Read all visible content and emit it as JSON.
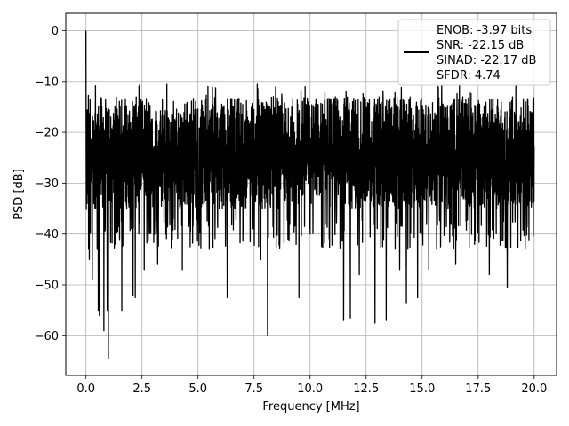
{
  "chart_data": {
    "type": "line",
    "xlabel": "Frequency [MHz]",
    "ylabel": "PSD [dB]",
    "xlim": [
      -0.9,
      21.0
    ],
    "ylim": [
      -67.8,
      3.4
    ],
    "xticks": [
      0.0,
      2.5,
      5.0,
      7.5,
      10.0,
      12.5,
      15.0,
      17.5,
      20.0
    ],
    "xtick_labels": [
      "0.0",
      "2.5",
      "5.0",
      "7.5",
      "10.0",
      "12.5",
      "15.0",
      "17.5",
      "20.0"
    ],
    "yticks": [
      0,
      -10,
      -20,
      -30,
      -40,
      -50,
      -60
    ],
    "ytick_labels": [
      "0",
      "−10",
      "−20",
      "−30",
      "−40",
      "−50",
      "−60"
    ],
    "grid": true,
    "legend_position": "top-right",
    "series": [
      {
        "name": "ENOB: -3.97 bits\nSNR: -22.15 dB\nSINAD: -22.17 dB\nSFDR: 4.74",
        "color": "#000000",
        "x_range": [
          0.0,
          20.0
        ],
        "typical_range": [
          -35,
          -13
        ],
        "peak": {
          "x": 0.0,
          "y": 0.0
        },
        "dips": [
          {
            "x": 0.05,
            "y": -34
          },
          {
            "x": 0.12,
            "y": -43
          },
          {
            "x": 0.15,
            "y": -45
          },
          {
            "x": 0.28,
            "y": -49
          },
          {
            "x": 0.5,
            "y": -43
          },
          {
            "x": 0.55,
            "y": -55
          },
          {
            "x": 0.6,
            "y": -56
          },
          {
            "x": 0.8,
            "y": -59
          },
          {
            "x": 0.95,
            "y": -55
          },
          {
            "x": 1.0,
            "y": -64.5
          },
          {
            "x": 1.3,
            "y": -42
          },
          {
            "x": 1.6,
            "y": -55
          },
          {
            "x": 2.1,
            "y": -52
          },
          {
            "x": 2.2,
            "y": -52.5
          },
          {
            "x": 2.6,
            "y": -47
          },
          {
            "x": 3.2,
            "y": -46
          },
          {
            "x": 4.3,
            "y": -47
          },
          {
            "x": 5.5,
            "y": -43
          },
          {
            "x": 6.3,
            "y": -52.5
          },
          {
            "x": 7.8,
            "y": -45
          },
          {
            "x": 8.1,
            "y": -60
          },
          {
            "x": 9.5,
            "y": -52.5
          },
          {
            "x": 10.0,
            "y": -40
          },
          {
            "x": 11.5,
            "y": -57
          },
          {
            "x": 11.8,
            "y": -56.5
          },
          {
            "x": 12.2,
            "y": -48
          },
          {
            "x": 12.9,
            "y": -57.5
          },
          {
            "x": 13.4,
            "y": -57
          },
          {
            "x": 14.0,
            "y": -47
          },
          {
            "x": 14.3,
            "y": -53.5
          },
          {
            "x": 14.8,
            "y": -52.5
          },
          {
            "x": 15.3,
            "y": -47
          },
          {
            "x": 16.5,
            "y": -46
          },
          {
            "x": 18.0,
            "y": -48
          },
          {
            "x": 18.8,
            "y": -50.5
          },
          {
            "x": 19.6,
            "y": -43
          }
        ]
      }
    ]
  }
}
